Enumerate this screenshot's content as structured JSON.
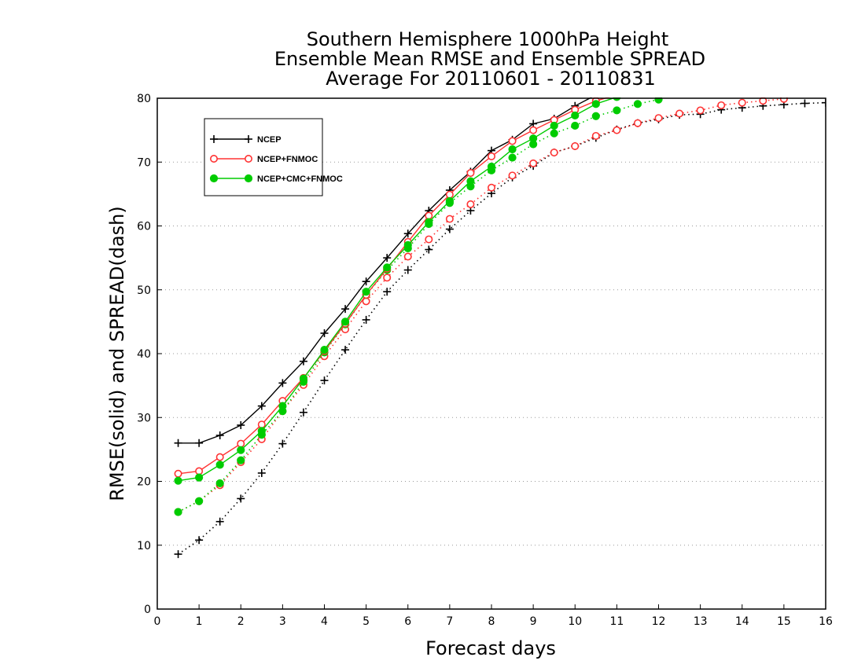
{
  "chart_data": {
    "type": "line",
    "title_lines": [
      "Southern Hemisphere 1000hPa Height",
      "Ensemble Mean RMSE and Ensemble SPREAD",
      "Average For 20110601 - 20110831"
    ],
    "xlabel": "Forecast days",
    "ylabel": "RMSE(solid) and SPREAD(dash)",
    "xlim": [
      0,
      16
    ],
    "ylim": [
      0,
      80
    ],
    "xticks": [
      "0",
      "1",
      "2",
      "3",
      "4",
      "5",
      "6",
      "7",
      "8",
      "9",
      "10",
      "11",
      "12",
      "13",
      "14",
      "15",
      "16"
    ],
    "yticks": [
      "0",
      "10",
      "20",
      "30",
      "40",
      "50",
      "60",
      "70",
      "80"
    ],
    "grid": "horizontal dotted",
    "legend_position": "top-left",
    "x": [
      0.5,
      1,
      1.5,
      2,
      2.5,
      3,
      3.5,
      4,
      4.5,
      5,
      5.5,
      6,
      6.5,
      7,
      7.5,
      8,
      8.5,
      9,
      9.5,
      10,
      10.5,
      11,
      11.5,
      12,
      12.5,
      13,
      13.5,
      14,
      14.5,
      15,
      15.5,
      16
    ],
    "series": [
      {
        "name": "NCEP",
        "style": "solid",
        "marker": "plus",
        "color": "#000000",
        "values": [
          26,
          26,
          27.2,
          28.8,
          31.8,
          35.4,
          38.8,
          43.2,
          47.0,
          51.3,
          55.0,
          58.8,
          62.4,
          65.6,
          68.5,
          71.8,
          73.5,
          76.0,
          76.8,
          78.8,
          80.5,
          null,
          null,
          null,
          null,
          null,
          null,
          null,
          null,
          null,
          null,
          null
        ]
      },
      {
        "name": "NCEP+FNMOC",
        "style": "solid",
        "marker": "open-circle",
        "color": "#ff3333",
        "values": [
          21.2,
          21.6,
          23.8,
          25.9,
          28.9,
          32.6,
          36.2,
          40.4,
          44.7,
          49.2,
          53.3,
          57.5,
          61.6,
          64.9,
          68.3,
          70.9,
          73.3,
          75.0,
          76.6,
          78.2,
          79.6,
          80.5,
          null,
          null,
          null,
          null,
          null,
          null,
          null,
          null,
          null,
          null
        ]
      },
      {
        "name": "NCEP+CMC+FNMOC",
        "style": "solid",
        "marker": "filled-circle",
        "color": "#00cc00",
        "values": [
          20.1,
          20.6,
          22.6,
          24.9,
          27.9,
          31.8,
          36.1,
          40.6,
          45.0,
          49.7,
          53.5,
          57.0,
          60.6,
          63.9,
          67.0,
          69.3,
          72.0,
          73.7,
          75.7,
          77.3,
          79.1,
          80.2,
          null,
          null,
          null,
          null,
          null,
          null,
          null,
          null,
          null,
          null
        ]
      },
      {
        "name": "NCEP spread",
        "style": "dotted",
        "marker": "plus",
        "color": "#000000",
        "values": [
          8.6,
          10.8,
          13.7,
          17.3,
          21.3,
          25.9,
          30.8,
          35.8,
          40.6,
          45.3,
          49.7,
          53.1,
          56.3,
          59.5,
          62.4,
          65.1,
          67.6,
          69.4,
          71.5,
          72.5,
          73.8,
          75.1,
          76.1,
          76.7,
          77.4,
          77.5,
          78.2,
          78.5,
          78.8,
          79.0,
          79.2,
          79.3
        ]
      },
      {
        "name": "NCEP+FNMOC spread",
        "style": "dotted",
        "marker": "open-circle",
        "color": "#ff3333",
        "values": [
          15.2,
          16.9,
          19.4,
          23.0,
          26.6,
          31.0,
          35.1,
          39.6,
          43.8,
          48.2,
          51.9,
          55.2,
          57.9,
          61.1,
          63.4,
          66.0,
          67.9,
          69.8,
          71.5,
          72.5,
          74.1,
          75.0,
          76.1,
          76.9,
          77.6,
          78.1,
          78.9,
          79.3,
          79.6,
          79.9,
          null,
          null
        ]
      },
      {
        "name": "NCEP+CMC+FNMOC spread",
        "style": "dotted",
        "marker": "filled-circle",
        "color": "#00cc00",
        "values": [
          15.2,
          16.9,
          19.7,
          23.3,
          27.3,
          31.0,
          35.6,
          40.2,
          44.6,
          49.2,
          53.1,
          56.5,
          60.3,
          63.6,
          66.2,
          68.7,
          70.7,
          72.8,
          74.5,
          75.7,
          77.2,
          78.1,
          79.1,
          79.8,
          null,
          null,
          null,
          null,
          null,
          null,
          null,
          null
        ]
      }
    ],
    "legend": [
      {
        "label": "NCEP",
        "marker": "plus",
        "color": "#000000"
      },
      {
        "label": "NCEP+FNMOC",
        "marker": "open-circle",
        "color": "#ff3333"
      },
      {
        "label": "NCEP+CMC+FNMOC",
        "marker": "filled-circle",
        "color": "#00cc00"
      }
    ]
  }
}
